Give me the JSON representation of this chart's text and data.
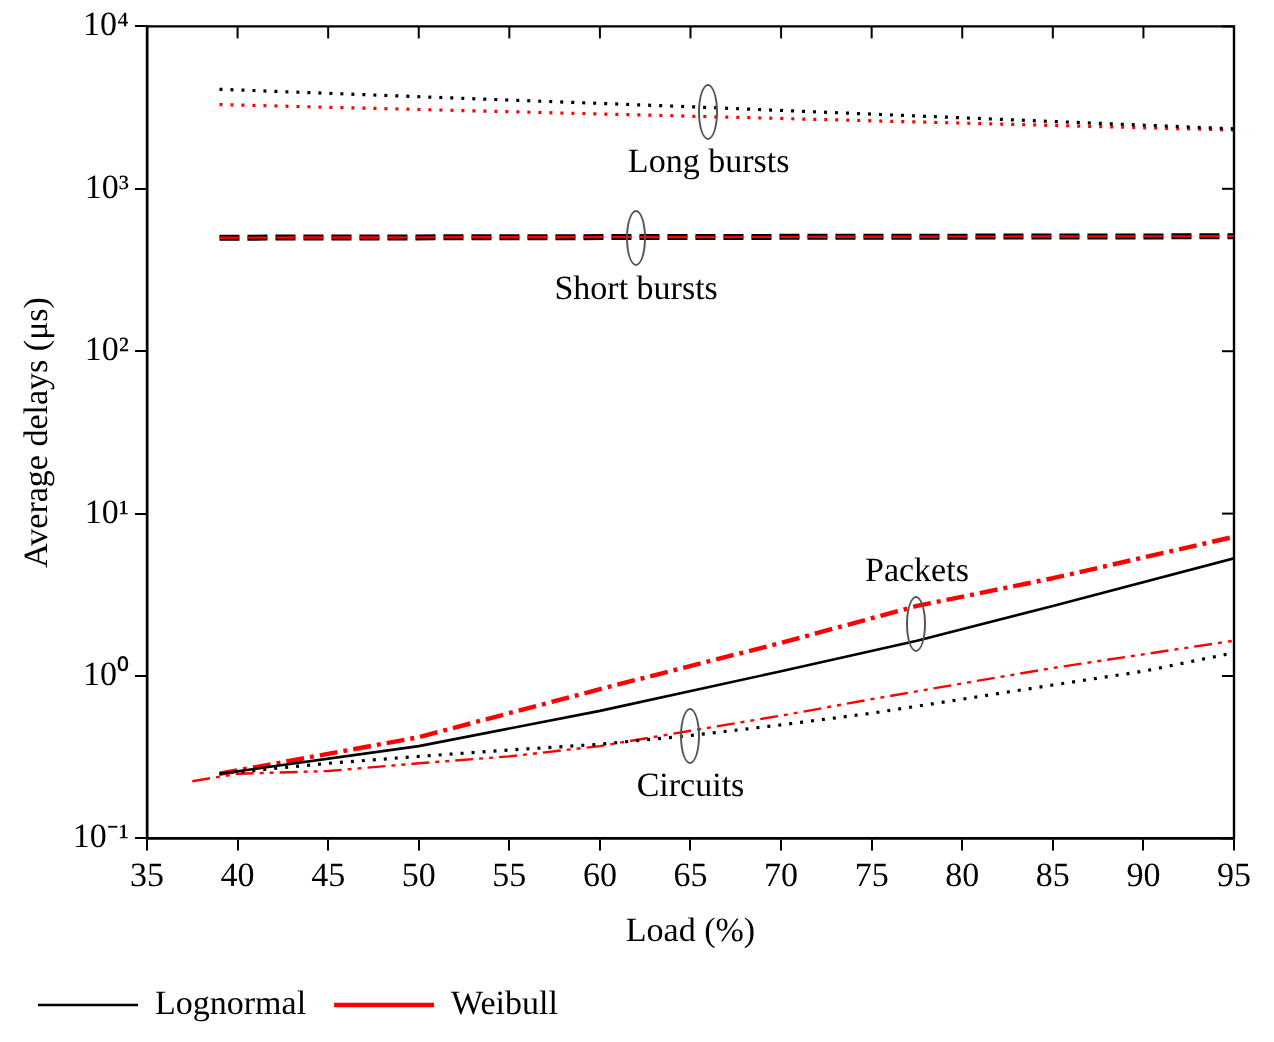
{
  "chart_data": {
    "type": "line",
    "xlabel": "Load (%)",
    "ylabel": "Average delays (μs)",
    "xlim": [
      35,
      95
    ],
    "xticks": [
      35,
      40,
      45,
      50,
      55,
      60,
      65,
      70,
      75,
      80,
      85,
      90,
      95
    ],
    "ylim": [
      0.1,
      10000
    ],
    "yticks": [
      {
        "value": 0.1,
        "label": "10⁻¹"
      },
      {
        "value": 1,
        "label": "10⁰"
      },
      {
        "value": 10,
        "label": "10¹"
      },
      {
        "value": 100,
        "label": "10²"
      },
      {
        "value": 1000,
        "label": "10³"
      },
      {
        "value": 10000,
        "label": "10⁴"
      }
    ],
    "log": "y",
    "grid": false,
    "legend": "bottom left",
    "marker": "none",
    "series": [
      {
        "color": "#000000",
        "line_style": "dotted",
        "x": [
          39,
          65,
          95
        ],
        "values": [
          4100,
          3200,
          2340
        ]
      },
      {
        "color": "#ff0000",
        "line_style": "dotted",
        "x": [
          39,
          65,
          95
        ],
        "values": [
          3300,
          2800,
          2300
        ]
      },
      {
        "color": "#000000",
        "line_style": "dashed",
        "x": [
          39,
          65,
          95
        ],
        "values": [
          500,
          505,
          510
        ]
      },
      {
        "color": "#ff0000",
        "line_style": "dashed",
        "x": [
          39,
          65,
          95
        ],
        "values": [
          500,
          505,
          510
        ]
      },
      {
        "name": "Lognormal",
        "color": "#000000",
        "line_style": "solid",
        "x": [
          39,
          50,
          60,
          70,
          77.5,
          85,
          95
        ],
        "values": [
          0.25,
          0.37,
          0.61,
          1.07,
          1.65,
          2.7,
          5.3
        ]
      },
      {
        "name": "Weibull",
        "color": "#ff0000",
        "line_style": "dashdot",
        "x": [
          39,
          50,
          60,
          70,
          77.5,
          85,
          95
        ],
        "values": [
          0.25,
          0.42,
          0.83,
          1.6,
          2.7,
          4.0,
          7.2
        ]
      },
      {
        "color": "#000000",
        "line_style": "dotted",
        "x": [
          39,
          45,
          50,
          55,
          60,
          65,
          70,
          75,
          80,
          85,
          90,
          95
        ],
        "values": [
          0.25,
          0.29,
          0.32,
          0.35,
          0.38,
          0.43,
          0.5,
          0.59,
          0.72,
          0.88,
          1.07,
          1.39
        ]
      },
      {
        "color": "#ff0000",
        "line_style": "dashdotdot",
        "x": [
          37.5,
          40,
          45,
          50,
          55,
          60,
          65,
          70,
          75,
          80,
          85,
          90,
          95
        ],
        "values": [
          0.225,
          0.25,
          0.26,
          0.29,
          0.32,
          0.37,
          0.46,
          0.57,
          0.72,
          0.9,
          1.12,
          1.36,
          1.65
        ]
      }
    ],
    "annotations": [
      {
        "text": "Long bursts",
        "x": 66,
        "y": 3000
      },
      {
        "text": "Short bursts",
        "x": 62,
        "y": 500
      },
      {
        "text": "Packets",
        "x": 77.5,
        "y": 2.1
      },
      {
        "text": "Circuits",
        "x": 65,
        "y": 0.43
      }
    ]
  }
}
